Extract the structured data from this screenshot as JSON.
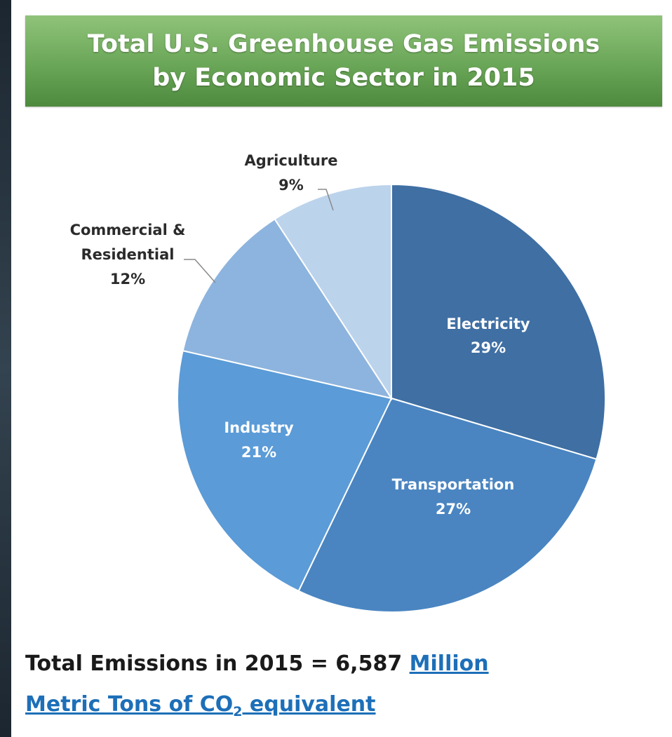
{
  "title": {
    "line1": "Total U.S. Greenhouse Gas Emissions",
    "line2": "by Economic Sector in 2015"
  },
  "chart_data": {
    "type": "pie",
    "title": "Total U.S. Greenhouse Gas Emissions by Economic Sector in 2015",
    "slices": [
      {
        "label": "Electricity",
        "value": 29,
        "display": "29%",
        "color": "#3f6fa3",
        "label_position": "inside"
      },
      {
        "label": "Transportation",
        "value": 27,
        "display": "27%",
        "color": "#4a85c1",
        "label_position": "inside"
      },
      {
        "label": "Industry",
        "value": 21,
        "display": "21%",
        "color": "#5b9bd7",
        "label_position": "inside"
      },
      {
        "label": "Commercial & Residential",
        "value": 12,
        "display": "12%",
        "color": "#8db4de",
        "label_position": "outside"
      },
      {
        "label": "Agriculture",
        "value": 9,
        "display": "9%",
        "color": "#bcd3ec",
        "label_position": "outside"
      }
    ],
    "start_angle": "12 o'clock",
    "direction": "clockwise"
  },
  "labels": {
    "electricity": {
      "name": "Electricity",
      "pct": "29%"
    },
    "transportation": {
      "name": "Transportation",
      "pct": "27%"
    },
    "industry": {
      "name": "Industry",
      "pct": "21%"
    },
    "commercial": {
      "line1": "Commercial &",
      "line2": "Residential",
      "pct": "12%"
    },
    "agriculture": {
      "name": "Agriculture",
      "pct": "9%"
    }
  },
  "footer": {
    "prefix": "Total Emissions in 2015 = 6,587 ",
    "link_part1": "Million",
    "link_part2a": "Metric Tons of CO",
    "link_sub": "2",
    "link_part2b": " equivalent"
  },
  "colors": {
    "banner": "#6aa657",
    "link": "#1d6fb8"
  }
}
